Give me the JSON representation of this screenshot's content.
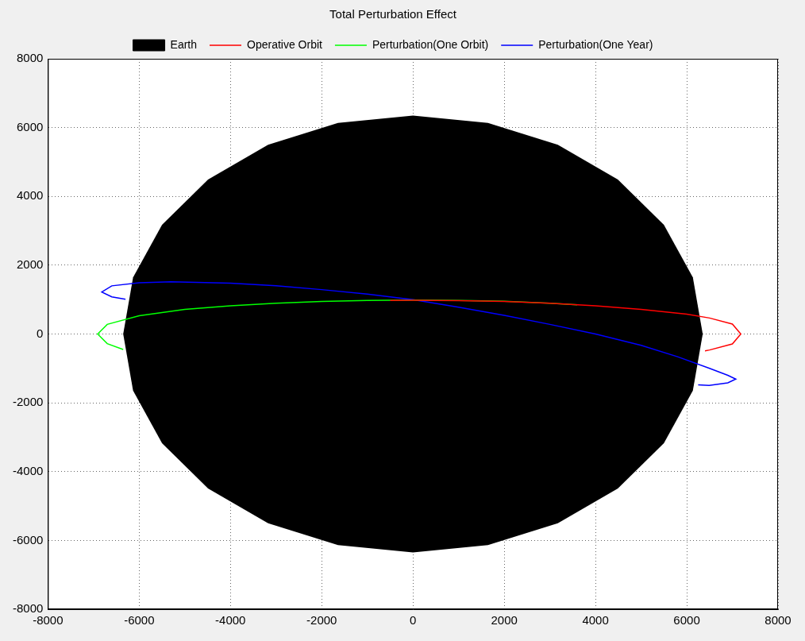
{
  "chart_data": {
    "type": "line",
    "title": "Total Perturbation Effect",
    "series": [
      {
        "name": "Earth",
        "type": "area",
        "color": "#000000",
        "x": [
          6350,
          6134,
          5499,
          4490,
          3175,
          1643,
          0,
          -1643,
          -3175,
          -4490,
          -5499,
          -6134,
          -6350,
          -6134,
          -5499,
          -4490,
          -3175,
          -1643,
          0,
          1643,
          3175,
          4490,
          5499,
          6134
        ],
        "values": [
          0,
          1643,
          3175,
          4490,
          5499,
          6134,
          6350,
          6134,
          5499,
          4490,
          3175,
          1643,
          0,
          -1643,
          -3175,
          -4490,
          -5499,
          -6134,
          -6350,
          -6134,
          -5499,
          -4490,
          -3175,
          -1643
        ]
      },
      {
        "name": "Operative Orbit",
        "type": "line",
        "color": "#ff0000",
        "x": [
          -500,
          0,
          1000,
          2000,
          3000,
          4000,
          5000,
          6000,
          6500,
          7000,
          7185,
          7000,
          6500,
          6400
        ],
        "values": [
          978,
          980,
          970,
          946,
          894,
          820,
          716,
          575,
          465,
          290,
          0,
          -290,
          -465,
          -490
        ]
      },
      {
        "name": "Perturbation(One Orbit)",
        "type": "line",
        "color": "#00ff00",
        "x": [
          -6350,
          -6700,
          -6910,
          -6700,
          -6000,
          -5000,
          -4000,
          -3000,
          -2000,
          -1000,
          0,
          1000,
          2000,
          3000,
          3600
        ],
        "values": [
          -450,
          -280,
          0,
          280,
          530,
          715,
          820,
          893,
          945,
          975,
          985,
          975,
          950,
          895,
          850
        ]
      },
      {
        "name": "Perturbation(One Year)",
        "type": "line",
        "color": "#0000ff",
        "x": [
          -6300,
          -6600,
          -6820,
          -6600,
          -6000,
          -5300,
          -4000,
          -3000,
          -2000,
          -1000,
          0,
          1000,
          2000,
          3000,
          4000,
          5000,
          5800,
          6500,
          6900,
          7075,
          6900,
          6490,
          6250
        ],
        "values": [
          1010,
          1080,
          1220,
          1400,
          1490,
          1520,
          1480,
          1400,
          1290,
          1160,
          1000,
          780,
          540,
          280,
          0,
          -330,
          -660,
          -1000,
          -1200,
          -1310,
          -1420,
          -1495,
          -1480
        ]
      }
    ],
    "xlim": [
      -8000,
      8000
    ],
    "ylim": [
      -8000,
      8000
    ],
    "xticks": [
      -8000,
      -6000,
      -4000,
      -2000,
      0,
      2000,
      4000,
      6000,
      8000
    ],
    "yticks": [
      -8000,
      -6000,
      -4000,
      -2000,
      0,
      2000,
      4000,
      6000,
      8000
    ],
    "grid": true,
    "legend": "top"
  }
}
